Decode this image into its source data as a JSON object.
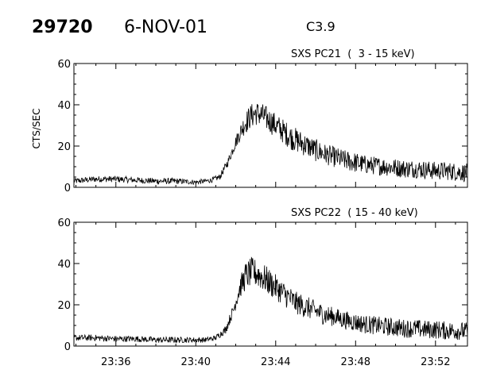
{
  "header": {
    "id": "29720",
    "date": "6-NOV-01",
    "class": "C3.9"
  },
  "chart_data": [
    {
      "type": "line",
      "title": "SXS PC21  (  3 - 15 keV)",
      "ylabel": "CTS/SEC",
      "xlabel": "",
      "ylim": [
        0,
        60
      ],
      "yticks": [
        "0",
        "20",
        "40",
        "60"
      ],
      "xticks": [
        "23:36",
        "23:40",
        "23:44",
        "23:48",
        "23:52"
      ],
      "xlim_minutes": [
        33.9,
        53.6
      ],
      "series": [
        {
          "x_minutes": [
            33.9,
            35.0,
            36.0,
            37.0,
            38.0,
            39.0,
            40.0,
            40.5,
            40.8,
            41.2,
            41.6,
            42.0,
            42.4,
            42.7,
            43.0,
            43.3,
            43.6,
            44.0,
            44.4,
            44.8,
            45.2,
            45.6,
            46.0,
            46.5,
            47.0,
            47.5,
            48.0,
            48.5,
            49.0,
            49.5,
            50.0,
            50.5,
            51.0,
            51.5,
            52.0,
            52.5,
            53.0,
            53.6
          ],
          "y": [
            3,
            4,
            4,
            3.5,
            3,
            3,
            2.5,
            3,
            3.5,
            5,
            12,
            22,
            30,
            34,
            36,
            35,
            33,
            30,
            27,
            24,
            22,
            20,
            18,
            16,
            14.5,
            13,
            12,
            11,
            10.5,
            10,
            9.5,
            9,
            9,
            8.5,
            8,
            8,
            7.5,
            7
          ],
          "noise": [
            1.5,
            1.5,
            1.5,
            1.5,
            1.5,
            1.5,
            1.2,
            1.2,
            1.2,
            1.5,
            2,
            3,
            5,
            6,
            6,
            6,
            6,
            6,
            6,
            6,
            6,
            5.5,
            5.5,
            5,
            5,
            5,
            5,
            4.5,
            4.5,
            4.5,
            4.5,
            4.5,
            4.5,
            4.5,
            4.5,
            4.5,
            4.5,
            4.5
          ]
        }
      ]
    },
    {
      "type": "line",
      "title": "SXS PC22  ( 15 - 40 keV)",
      "ylabel": "",
      "xlabel": "",
      "ylim": [
        0,
        60
      ],
      "yticks": [
        "0",
        "20",
        "40",
        "60"
      ],
      "xticks": [
        "23:36",
        "23:40",
        "23:44",
        "23:48",
        "23:52"
      ],
      "xlim_minutes": [
        33.9,
        53.6
      ],
      "series": [
        {
          "x_minutes": [
            33.9,
            35.0,
            36.0,
            37.0,
            38.0,
            39.0,
            40.0,
            40.5,
            41.0,
            41.5,
            41.9,
            42.2,
            42.5,
            42.8,
            43.1,
            43.4,
            43.8,
            44.2,
            44.6,
            45.0,
            45.5,
            46.0,
            46.5,
            47.0,
            47.5,
            48.0,
            48.5,
            49.0,
            49.5,
            50.0,
            50.5,
            51.0,
            51.5,
            52.0,
            52.5,
            53.0,
            53.6
          ],
          "y": [
            4,
            4,
            3.5,
            3.5,
            3,
            3,
            3,
            3,
            4,
            8,
            18,
            28,
            34,
            36,
            35,
            33,
            30,
            27,
            24,
            21,
            19,
            17,
            15,
            14,
            12.5,
            11.5,
            10.5,
            10,
            9.5,
            9,
            8.5,
            8.5,
            8,
            8,
            7.5,
            7.5,
            7
          ],
          "noise": [
            1.5,
            1.5,
            1.5,
            1.5,
            1.5,
            1.5,
            1.3,
            1.3,
            1.3,
            2,
            3,
            5,
            7,
            7,
            7,
            7,
            6.5,
            6,
            6,
            5.5,
            5.5,
            5,
            5,
            4.5,
            4.5,
            4.5,
            4.5,
            4.5,
            4.5,
            4.5,
            4.5,
            4.5,
            4.5,
            4.5,
            4.5,
            4.5,
            4.5
          ]
        }
      ]
    }
  ]
}
